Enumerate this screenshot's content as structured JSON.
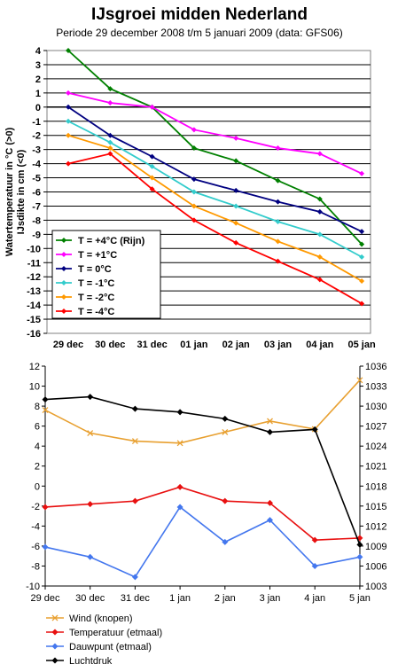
{
  "chart_data": [
    {
      "type": "line",
      "title": "IJsgroei midden Nederland",
      "subtitle": "Periode 29 december 2008 t/m 5 januari 2009 (data: GFS06)",
      "ylabel_line1": "Watertemperatuur in °C (>0)",
      "ylabel_line2": "IJsdikte in cm (<0)",
      "categories": [
        "29 dec",
        "30 dec",
        "31 dec",
        "01 jan",
        "02 jan",
        "03 jan",
        "04 jan",
        "05 jan"
      ],
      "ylim": [
        -16,
        4
      ],
      "yticks": [
        4,
        3,
        2,
        1,
        0,
        -1,
        -2,
        -3,
        -4,
        -5,
        -6,
        -7,
        -8,
        -9,
        -10,
        -11,
        -12,
        -13,
        -14,
        -15,
        -16
      ],
      "grid": true,
      "legend_position": "lower-left",
      "series": [
        {
          "name": "T = +4°C (Rijn)",
          "color": "#008000",
          "values": [
            4,
            1.3,
            0,
            -2.9,
            -3.8,
            -5.2,
            -6.5,
            -9.7
          ]
        },
        {
          "name": "T = +1°C",
          "color": "#ff00ff",
          "values": [
            1,
            0.3,
            0,
            -1.6,
            -2.2,
            -2.9,
            -3.3,
            -4.7
          ]
        },
        {
          "name": "T = 0°C",
          "color": "#000080",
          "values": [
            0,
            -2,
            -3.5,
            -5.1,
            -5.9,
            -6.7,
            -7.4,
            -8.8
          ]
        },
        {
          "name": "T = -1°C",
          "color": "#33cccc",
          "values": [
            -1,
            -2.5,
            -4.2,
            -6,
            -7,
            -8.1,
            -9,
            -10.6
          ]
        },
        {
          "name": "T = -2°C",
          "color": "#ff9900",
          "values": [
            -2,
            -2.9,
            -5,
            -7,
            -8.2,
            -9.5,
            -10.6,
            -12.3
          ]
        },
        {
          "name": "T = -4°C",
          "color": "#ff0000",
          "values": [
            -4,
            -3.3,
            -5.8,
            -8,
            -9.6,
            -10.9,
            -12.2,
            -13.9
          ]
        }
      ]
    },
    {
      "type": "line",
      "categories": [
        "29 dec",
        "30 dec",
        "31 dec",
        "1 jan",
        "2 jan",
        "3 jan",
        "4 jan",
        "5 jan"
      ],
      "ylim_left": [
        -10,
        12
      ],
      "yticks_left": [
        12,
        10,
        8,
        6,
        4,
        2,
        0,
        -2,
        -4,
        -6,
        -8,
        -10
      ],
      "ylim_right": [
        1003,
        1036
      ],
      "yticks_right": [
        1036,
        1033,
        1030,
        1027,
        1024,
        1021,
        1018,
        1015,
        1012,
        1009,
        1006,
        1003
      ],
      "grid": false,
      "legend_position": "bottom",
      "series": [
        {
          "name": "Wind (knopen)",
          "color": "#e8a030",
          "marker": "x",
          "axis": "left",
          "values": [
            7.6,
            5.3,
            4.5,
            4.3,
            5.4,
            6.5,
            5.7,
            10.6
          ]
        },
        {
          "name": "Temperatuur (etmaal)",
          "color": "#e81010",
          "marker": "diamond",
          "axis": "left",
          "values": [
            -2.1,
            -1.8,
            -1.5,
            -0.1,
            -1.5,
            -1.7,
            -5.4,
            -5.2
          ]
        },
        {
          "name": "Dauwpunt (etmaal)",
          "color": "#4477ee",
          "marker": "diamond",
          "axis": "left",
          "values": [
            -6.1,
            -7.1,
            -9.1,
            -2.1,
            -5.6,
            -3.4,
            -8,
            -7.1
          ]
        },
        {
          "name": "Luchtdruk",
          "color": "#000000",
          "marker": "diamond",
          "axis": "right",
          "values": [
            1031,
            1031.4,
            1029.6,
            1029.1,
            1028.1,
            1026.1,
            1026.5,
            1009.2
          ]
        }
      ]
    }
  ]
}
